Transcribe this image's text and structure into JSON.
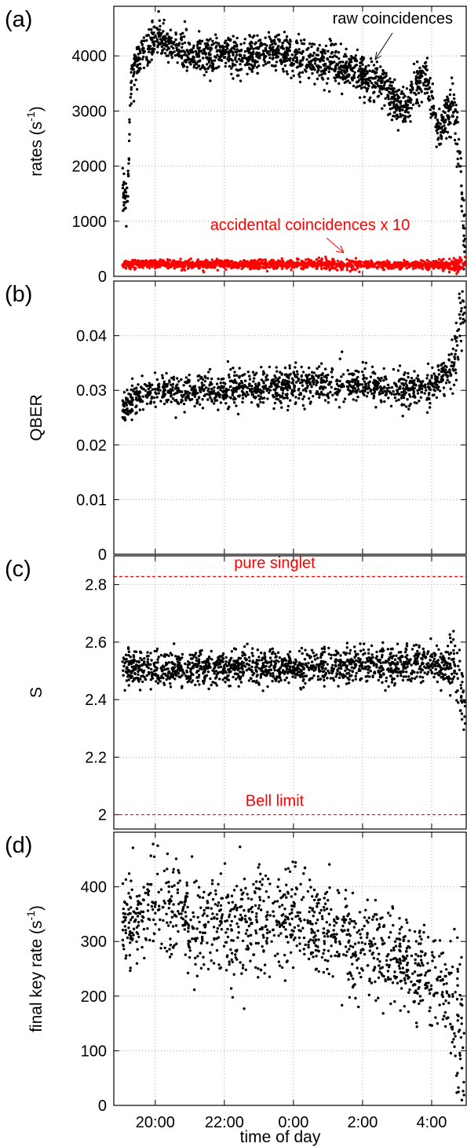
{
  "chart_data": [
    {
      "type": "scatter",
      "panel_label": "(a)",
      "ylabel": "rates (s",
      "ylabel_sup": "-1",
      "ylabel_end": ")",
      "ylim": [
        0,
        4900
      ],
      "yticks": [
        0,
        1000,
        2000,
        3000,
        4000
      ],
      "ytick_labels": [
        "0",
        "1000",
        "2000",
        "3000",
        "4000"
      ],
      "grid": true,
      "series": [
        {
          "name": "raw coincidences",
          "color": "#000000",
          "x": [
            19.2,
            19.3,
            19.4,
            19.5,
            19.7,
            20.0,
            20.3,
            20.6,
            21.0,
            21.5,
            22.0,
            22.5,
            23.0,
            23.5,
            24.0,
            24.5,
            25.0,
            25.5,
            25.8,
            26.0,
            26.5,
            26.8,
            27.0,
            27.3,
            27.5,
            27.8,
            28.0,
            28.2,
            28.4,
            28.6,
            28.8,
            28.95
          ],
          "values": [
            1500,
            3500,
            3800,
            3900,
            4100,
            4300,
            4250,
            4150,
            4050,
            3950,
            4050,
            3950,
            4000,
            4100,
            4000,
            3900,
            3850,
            3800,
            3750,
            3650,
            3500,
            3300,
            3100,
            3050,
            3400,
            3700,
            3200,
            2500,
            2900,
            3200,
            2400,
            500
          ]
        },
        {
          "name": "accidental coincidences x 10",
          "color": "#ff0000",
          "x": [
            19.2,
            20.0,
            21.0,
            22.0,
            23.0,
            24.0,
            25.0,
            26.0,
            27.0,
            28.0,
            28.95
          ],
          "values": [
            220,
            230,
            210,
            220,
            215,
            220,
            210,
            215,
            205,
            210,
            200
          ]
        }
      ],
      "annotations": [
        "raw coincidences",
        "accidental coincidences x 10"
      ]
    },
    {
      "type": "scatter",
      "panel_label": "(b)",
      "ylabel": "QBER",
      "ylim": [
        0,
        0.05
      ],
      "yticks": [
        0,
        0.01,
        0.02,
        0.03,
        0.04
      ],
      "ytick_labels": [
        "0",
        "0.01",
        "0.02",
        "0.03",
        "0.04"
      ],
      "grid": true,
      "series": [
        {
          "name": "QBER",
          "color": "#000000",
          "x": [
            19.2,
            19.4,
            19.6,
            20.0,
            20.5,
            21.0,
            22.0,
            23.0,
            24.0,
            25.0,
            26.0,
            27.0,
            28.0,
            28.3,
            28.5,
            28.7,
            28.9
          ],
          "values": [
            0.027,
            0.029,
            0.029,
            0.03,
            0.03,
            0.03,
            0.03,
            0.03,
            0.031,
            0.031,
            0.031,
            0.03,
            0.031,
            0.032,
            0.034,
            0.037,
            0.045
          ]
        }
      ]
    },
    {
      "type": "scatter",
      "panel_label": "(c)",
      "ylabel": "S",
      "ylim": [
        1.95,
        2.9
      ],
      "yticks": [
        2.0,
        2.2,
        2.4,
        2.6,
        2.8
      ],
      "ytick_labels": [
        "2",
        "2.2",
        "2.4",
        "2.6",
        "2.8"
      ],
      "grid": true,
      "reference_lines": [
        {
          "label": "pure singlet",
          "value": 2.828,
          "color": "#ff0000"
        },
        {
          "label": "Bell limit",
          "value": 2.0,
          "color": "#ff0000"
        }
      ],
      "series": [
        {
          "name": "S",
          "color": "#000000",
          "x": [
            19.2,
            20.0,
            21.0,
            22.0,
            23.0,
            24.0,
            25.0,
            26.0,
            27.0,
            28.0,
            28.5,
            28.8,
            28.95
          ],
          "values": [
            2.51,
            2.51,
            2.51,
            2.51,
            2.51,
            2.51,
            2.52,
            2.52,
            2.52,
            2.53,
            2.51,
            2.48,
            2.38
          ]
        }
      ]
    },
    {
      "type": "scatter",
      "panel_label": "(d)",
      "ylabel": "final key rate (s",
      "ylabel_sup": "-1",
      "ylabel_end": ")",
      "xlabel": "time of day",
      "ylim": [
        0,
        500
      ],
      "yticks": [
        0,
        100,
        200,
        300,
        400
      ],
      "ytick_labels": [
        "0",
        "100",
        "200",
        "300",
        "400"
      ],
      "xlim": [
        18.8,
        29.0
      ],
      "xticks": [
        20,
        22,
        24,
        26,
        28
      ],
      "xtick_labels": [
        "20:00",
        "22:00",
        "0:00",
        "2:00",
        "4:00"
      ],
      "grid": true,
      "series": [
        {
          "name": "final key rate",
          "color": "#000000",
          "x": [
            19.2,
            19.6,
            20.0,
            20.5,
            21.0,
            22.0,
            23.0,
            24.0,
            25.0,
            26.0,
            26.5,
            27.0,
            27.5,
            28.0,
            28.3,
            28.6,
            28.8,
            28.95
          ],
          "values": [
            330,
            350,
            370,
            350,
            340,
            330,
            330,
            335,
            315,
            300,
            285,
            270,
            255,
            240,
            215,
            190,
            150,
            60
          ]
        }
      ]
    }
  ]
}
